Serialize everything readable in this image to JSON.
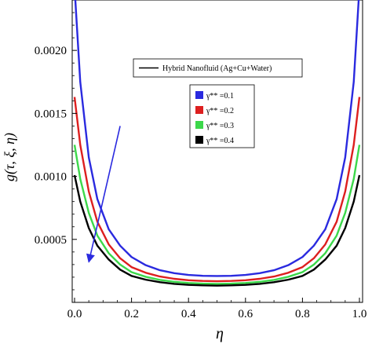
{
  "chart_data": {
    "type": "line",
    "title": "",
    "xlabel": "η",
    "ylabel": "g(τ, ξ, η)",
    "xlim": [
      0.0,
      1.0
    ],
    "ylim": [
      0.0,
      0.0024
    ],
    "x_ticks": [
      {
        "value": 0.0,
        "label": "0.0"
      },
      {
        "value": 0.2,
        "label": "0.2"
      },
      {
        "value": 0.4,
        "label": "0.4"
      },
      {
        "value": 0.6,
        "label": "0.6"
      },
      {
        "value": 0.8,
        "label": "0.8"
      },
      {
        "value": 1.0,
        "label": "1.0"
      }
    ],
    "y_ticks": [
      {
        "value": 0.0005,
        "label": "0.0005"
      },
      {
        "value": 0.001,
        "label": "0.0010"
      },
      {
        "value": 0.0015,
        "label": "0.0015"
      },
      {
        "value": 0.002,
        "label": "0.0020"
      }
    ],
    "legend_title": "Hybrid Nanofluid (Ag+Cu+Water)",
    "legend_title_color": "#000000",
    "legend_placement": "top-right",
    "series": [
      {
        "name": "γ** =0.1",
        "color": "#2a2adf",
        "x": [
          0.0,
          0.02,
          0.05,
          0.08,
          0.12,
          0.16,
          0.2,
          0.25,
          0.3,
          0.35,
          0.4,
          0.45,
          0.5,
          0.55,
          0.6,
          0.65,
          0.7,
          0.75,
          0.8,
          0.84,
          0.88,
          0.92,
          0.95,
          0.98,
          1.0
        ],
        "values": [
          0.0025,
          0.00175,
          0.00115,
          0.00082,
          0.00058,
          0.00045,
          0.00036,
          0.000295,
          0.000255,
          0.000232,
          0.000218,
          0.000211,
          0.000209,
          0.000211,
          0.000218,
          0.000232,
          0.000255,
          0.000295,
          0.00036,
          0.00045,
          0.00058,
          0.00082,
          0.00115,
          0.00175,
          0.0025
        ]
      },
      {
        "name": "γ** =0.2",
        "color": "#dd1f1f",
        "x": [
          0.0,
          0.02,
          0.05,
          0.08,
          0.12,
          0.16,
          0.2,
          0.25,
          0.3,
          0.35,
          0.4,
          0.45,
          0.5,
          0.55,
          0.6,
          0.65,
          0.7,
          0.75,
          0.8,
          0.84,
          0.88,
          0.92,
          0.95,
          0.98,
          1.0
        ],
        "values": [
          0.00163,
          0.00125,
          0.00088,
          0.00064,
          0.00046,
          0.00035,
          0.00028,
          0.000235,
          0.000205,
          0.000187,
          0.000176,
          0.00017,
          0.000168,
          0.00017,
          0.000176,
          0.000187,
          0.000205,
          0.000235,
          0.00028,
          0.00035,
          0.00046,
          0.00064,
          0.00088,
          0.00125,
          0.00163
        ]
      },
      {
        "name": "γ** =0.3",
        "color": "#3cd84a",
        "x": [
          0.0,
          0.02,
          0.05,
          0.08,
          0.12,
          0.16,
          0.2,
          0.25,
          0.3,
          0.35,
          0.4,
          0.45,
          0.5,
          0.55,
          0.6,
          0.65,
          0.7,
          0.75,
          0.8,
          0.84,
          0.88,
          0.92,
          0.95,
          0.98,
          1.0
        ],
        "values": [
          0.00125,
          0.00098,
          0.00071,
          0.00053,
          0.00039,
          0.0003,
          0.00024,
          0.000203,
          0.000178,
          0.000163,
          0.000154,
          0.000149,
          0.000147,
          0.000149,
          0.000154,
          0.000163,
          0.000178,
          0.000203,
          0.00024,
          0.0003,
          0.00039,
          0.00053,
          0.00071,
          0.00098,
          0.00125
        ]
      },
      {
        "name": "γ** =0.4",
        "color": "#000000",
        "x": [
          0.0,
          0.02,
          0.05,
          0.08,
          0.12,
          0.16,
          0.2,
          0.25,
          0.3,
          0.35,
          0.4,
          0.45,
          0.5,
          0.55,
          0.6,
          0.65,
          0.7,
          0.75,
          0.8,
          0.84,
          0.88,
          0.92,
          0.95,
          0.98,
          1.0
        ],
        "values": [
          0.00101,
          0.0008,
          0.00059,
          0.00045,
          0.00034,
          0.00026,
          0.00021,
          0.00018,
          0.00016,
          0.000147,
          0.000139,
          0.000135,
          0.000133,
          0.000135,
          0.000139,
          0.000147,
          0.00016,
          0.00018,
          0.00021,
          0.00026,
          0.00034,
          0.00045,
          0.00059,
          0.0008,
          0.00101
        ]
      }
    ],
    "annotation_arrow": {
      "color": "#2a2adf",
      "from": {
        "x": 0.16,
        "y": 0.0014
      },
      "to": {
        "x": 0.05,
        "y": 0.00032
      }
    }
  }
}
